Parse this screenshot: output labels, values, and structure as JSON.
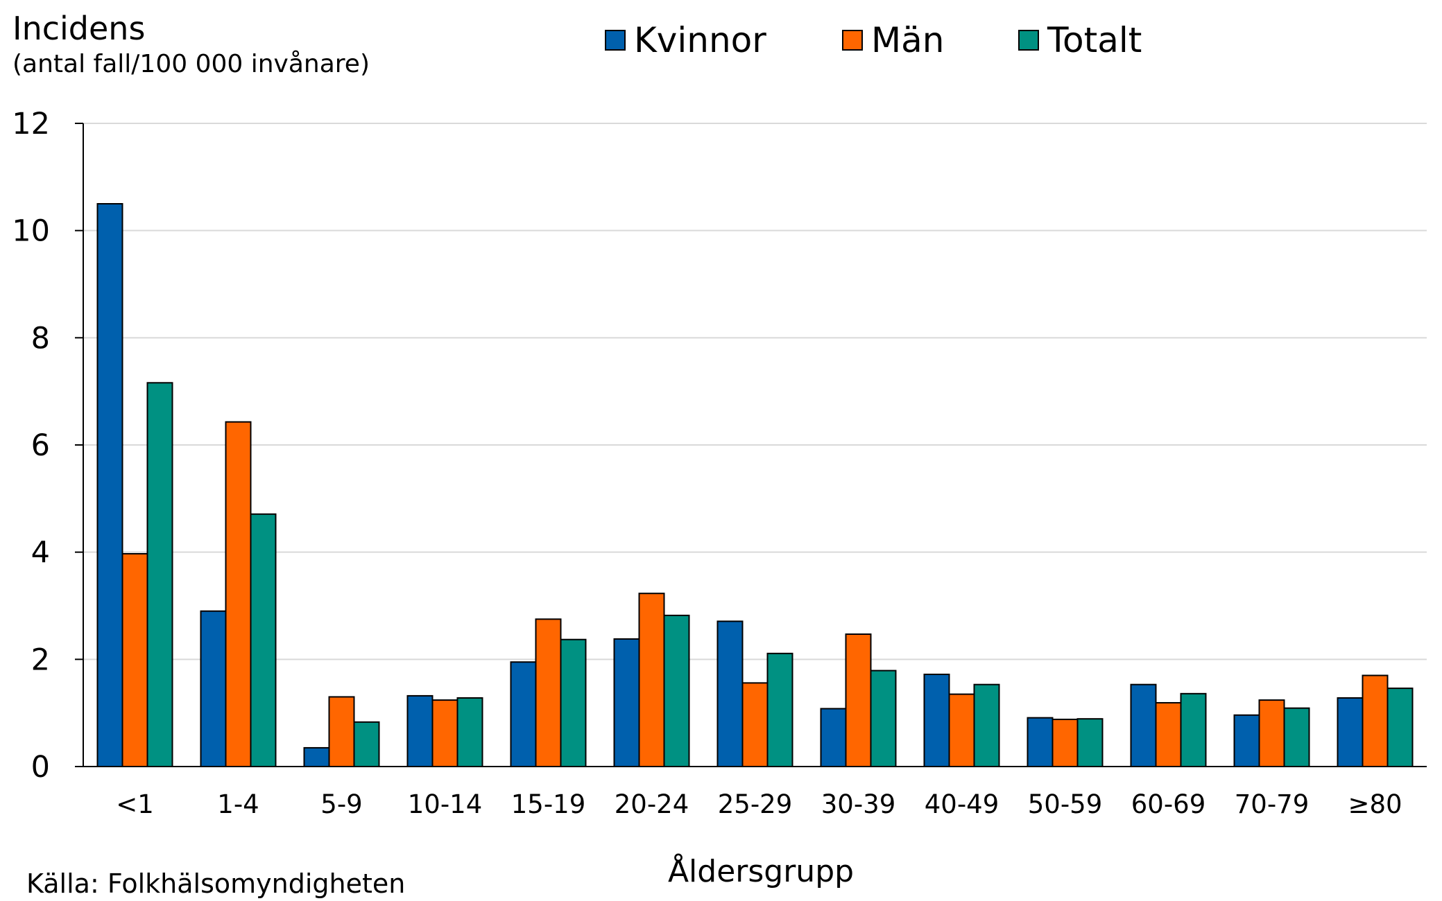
{
  "chart_data": {
    "type": "bar",
    "ylabel": "Incidens",
    "ylabel_sub": "(antal fall/100 000 invånare)",
    "xlabel": "Åldersgrupp",
    "source": "Källa: Folkhälsomyndigheten",
    "ylim": [
      0,
      12
    ],
    "yticks": [
      0,
      2,
      4,
      6,
      8,
      10,
      12
    ],
    "grid": "horizontal",
    "legend_position": "top",
    "categories": [
      "<1",
      "1-4",
      "5-9",
      "10-14",
      "15-19",
      "20-24",
      "25-29",
      "30-39",
      "40-49",
      "50-59",
      "60-69",
      "70-79",
      "≥80"
    ],
    "series": [
      {
        "name": "Kvinnor",
        "color": "#0060AD",
        "values": [
          10.5,
          2.9,
          0.35,
          1.32,
          1.95,
          2.38,
          2.71,
          1.08,
          1.72,
          0.91,
          1.53,
          0.96,
          1.28
        ]
      },
      {
        "name": "Män",
        "color": "#FF6600",
        "values": [
          3.97,
          6.43,
          1.3,
          1.24,
          2.75,
          3.23,
          1.56,
          2.47,
          1.35,
          0.88,
          1.19,
          1.24,
          1.7
        ]
      },
      {
        "name": "Totalt",
        "color": "#009182",
        "values": [
          7.16,
          4.71,
          0.83,
          1.28,
          2.37,
          2.82,
          2.11,
          1.79,
          1.53,
          0.89,
          1.36,
          1.09,
          1.46
        ]
      }
    ]
  }
}
